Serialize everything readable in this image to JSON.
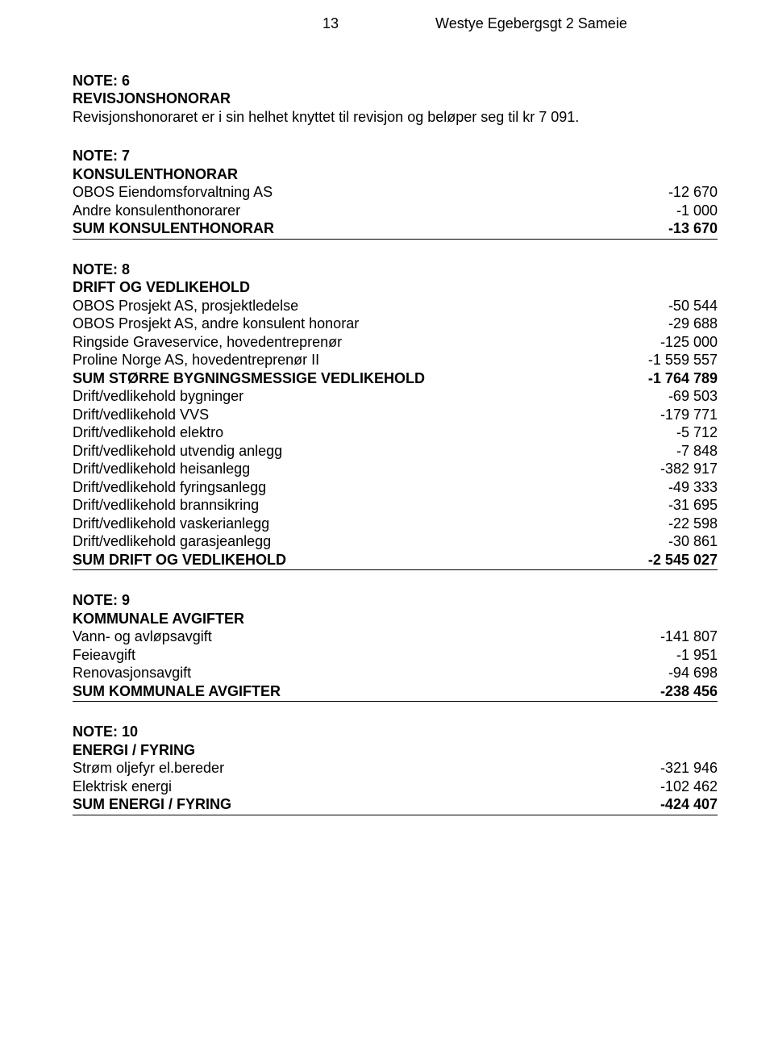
{
  "header": {
    "page_number": "13",
    "doc_title": "Westye Egebergsgt 2 Sameie"
  },
  "note6": {
    "heading1": "NOTE: 6",
    "heading2": "REVISJONSHONORAR",
    "text": "Revisjonshonoraret er i sin helhet knyttet til revisjon og beløper seg til kr 7 091."
  },
  "note7": {
    "heading1": "NOTE: 7",
    "heading2": "KONSULENTHONORAR",
    "rows": [
      {
        "label": "OBOS Eiendomsforvaltning AS",
        "value": "-12 670"
      },
      {
        "label": "Andre konsulenthonorarer",
        "value": "-1 000"
      }
    ],
    "sum_label": "SUM KONSULENTHONORAR",
    "sum_value": "-13 670"
  },
  "note8": {
    "heading1": "NOTE: 8",
    "heading2": "DRIFT OG VEDLIKEHOLD",
    "rows1": [
      {
        "label": "OBOS Prosjekt AS, prosjektledelse",
        "value": "-50 544"
      },
      {
        "label": "OBOS Prosjekt AS, andre konsulent honorar",
        "value": "-29 688"
      },
      {
        "label": "Ringside Graveservice, hovedentreprenør",
        "value": "-125 000"
      },
      {
        "label": "Proline Norge AS, hovedentreprenør II",
        "value": "-1 559 557"
      }
    ],
    "subsum_label": "SUM STØRRE BYGNINGSMESSIGE VEDLIKEHOLD",
    "subsum_value": "-1 764 789",
    "rows2": [
      {
        "label": "Drift/vedlikehold bygninger",
        "value": "-69 503"
      },
      {
        "label": "Drift/vedlikehold VVS",
        "value": "-179 771"
      },
      {
        "label": "Drift/vedlikehold elektro",
        "value": "-5 712"
      },
      {
        "label": "Drift/vedlikehold utvendig anlegg",
        "value": "-7 848"
      },
      {
        "label": "Drift/vedlikehold heisanlegg",
        "value": "-382 917"
      },
      {
        "label": "Drift/vedlikehold fyringsanlegg",
        "value": "-49 333"
      },
      {
        "label": "Drift/vedlikehold brannsikring",
        "value": "-31 695"
      },
      {
        "label": "Drift/vedlikehold vaskerianlegg",
        "value": "-22 598"
      },
      {
        "label": "Drift/vedlikehold garasjeanlegg",
        "value": "-30 861"
      }
    ],
    "sum_label": "SUM DRIFT OG VEDLIKEHOLD",
    "sum_value": "-2 545 027"
  },
  "note9": {
    "heading1": "NOTE: 9",
    "heading2": "KOMMUNALE AVGIFTER",
    "rows": [
      {
        "label": "Vann- og avløpsavgift",
        "value": "-141 807"
      },
      {
        "label": "Feieavgift",
        "value": "-1 951"
      },
      {
        "label": "Renovasjonsavgift",
        "value": "-94 698"
      }
    ],
    "sum_label": "SUM KOMMUNALE AVGIFTER",
    "sum_value": "-238 456"
  },
  "note10": {
    "heading1": "NOTE: 10",
    "heading2": "ENERGI / FYRING",
    "rows": [
      {
        "label": "Strøm oljefyr el.bereder",
        "value": "-321 946"
      },
      {
        "label": "Elektrisk energi",
        "value": "-102 462"
      }
    ],
    "sum_label": "SUM ENERGI / FYRING",
    "sum_value": "-424 407"
  }
}
